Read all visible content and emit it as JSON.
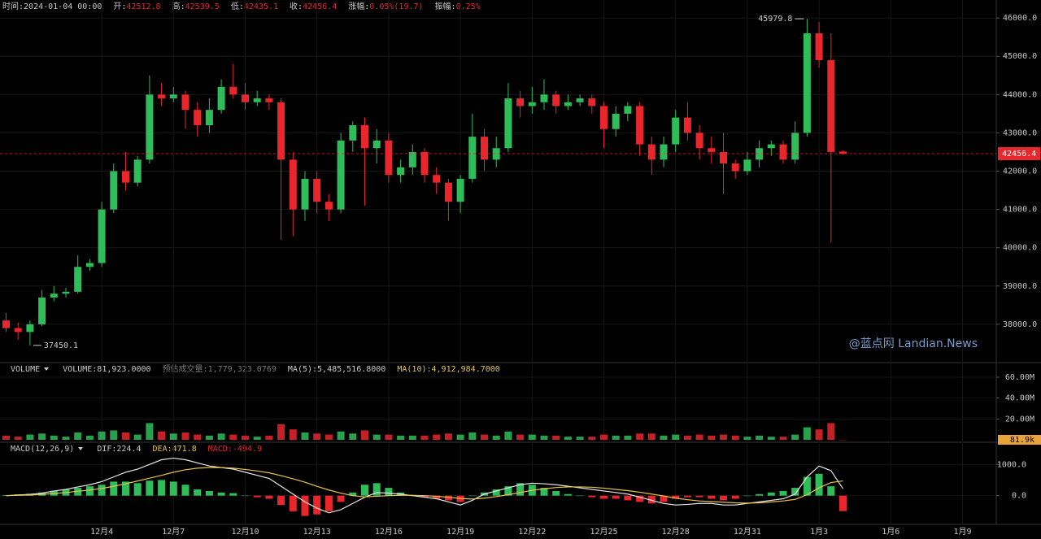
{
  "watermark": "@蓝点网 Landian.News",
  "chart_data": [
    {
      "type": "candlestick",
      "header": {
        "time_label": "时间:",
        "time": "2024-01-04 00:00",
        "open_label": "开:",
        "high_label": "高:",
        "low_label": "低:",
        "close_label": "收:",
        "change_label": "涨幅:",
        "change": "0.05%(19.7)",
        "amplitude_label": "振幅:",
        "amplitude": "0.25%"
      },
      "up_color": "#2ebd59",
      "down_color": "#e8262b",
      "categories": [
        null,
        null,
        null,
        null,
        null,
        null,
        null,
        null,
        "12月4",
        null,
        null,
        null,
        null,
        null,
        "12月7",
        null,
        null,
        null,
        null,
        null,
        "12月10",
        null,
        null,
        null,
        null,
        null,
        "12月13",
        null,
        null,
        null,
        null,
        null,
        "12月16",
        null,
        null,
        null,
        null,
        null,
        "12月19",
        null,
        null,
        null,
        null,
        null,
        "12月22",
        null,
        null,
        null,
        null,
        null,
        "12月25",
        null,
        null,
        null,
        null,
        null,
        "12月28",
        null,
        null,
        null,
        null,
        null,
        "12月31",
        null,
        null,
        null,
        null,
        null,
        "1月3",
        null,
        null,
        null,
        null,
        null,
        "1月6",
        null,
        null,
        null,
        null,
        null,
        "1月9"
      ],
      "open": [
        38100,
        37900,
        37800,
        38000,
        38700,
        38800,
        38850,
        39500,
        39600,
        41000,
        42000,
        41700,
        42300,
        44000,
        43900,
        44000,
        43600,
        43200,
        43600,
        44200,
        44000,
        43800,
        43900,
        43800,
        42300,
        41000,
        41800,
        41200,
        41000,
        42800,
        43200,
        42600,
        42800,
        41900,
        42100,
        42500,
        41900,
        41700,
        41200,
        41800,
        42900,
        42300,
        42600,
        43900,
        43700,
        43800,
        44000,
        43700,
        43800,
        43900,
        43700,
        43100,
        43500,
        43700,
        42700,
        42300,
        42700,
        43400,
        43000,
        42600,
        42500,
        42200,
        42000,
        42300,
        42600,
        42700,
        42300,
        43000,
        45600,
        44900,
        42512.8,
        null,
        null,
        null,
        null,
        null,
        null,
        null,
        null,
        null,
        null
      ],
      "high": [
        38300,
        38050,
        38100,
        38900,
        39000,
        38950,
        39800,
        39700,
        41200,
        42200,
        42500,
        42400,
        44500,
        44300,
        44200,
        44100,
        43800,
        43900,
        44400,
        44800,
        44300,
        44100,
        44000,
        43900,
        42500,
        42000,
        42000,
        41400,
        43000,
        43300,
        43400,
        43100,
        43000,
        42300,
        42700,
        42600,
        42100,
        41800,
        41900,
        43500,
        43100,
        42900,
        44300,
        44100,
        44200,
        44400,
        44100,
        44000,
        44000,
        44000,
        43800,
        43700,
        43800,
        43800,
        42900,
        42900,
        43600,
        43800,
        43200,
        42900,
        43000,
        42300,
        42500,
        42800,
        42800,
        42800,
        43300,
        45979.8,
        45900,
        45600,
        42539.5,
        null,
        null,
        null,
        null,
        null,
        null,
        null,
        null,
        null,
        null
      ],
      "low": [
        37800,
        37600,
        37450.1,
        37950,
        38600,
        38700,
        38800,
        39400,
        39500,
        40900,
        41500,
        41600,
        42200,
        43700,
        43800,
        43100,
        42900,
        43000,
        43500,
        43900,
        43600,
        43700,
        43600,
        40200,
        40300,
        40700,
        40900,
        40700,
        40900,
        42500,
        41100,
        42200,
        41700,
        41700,
        41900,
        41700,
        41400,
        40700,
        40900,
        41700,
        42000,
        42100,
        42500,
        43400,
        43500,
        43600,
        43500,
        43600,
        43700,
        43500,
        42600,
        42900,
        43300,
        42400,
        41900,
        42100,
        42500,
        42800,
        42300,
        42200,
        41400,
        41800,
        41900,
        42100,
        42400,
        42200,
        42200,
        42900,
        44700,
        40130,
        42435.1,
        null,
        null,
        null,
        null,
        null,
        null,
        null,
        null,
        null,
        null
      ],
      "close": [
        37900,
        37800,
        38000,
        38700,
        38800,
        38850,
        39500,
        39600,
        41000,
        42000,
        41700,
        42300,
        44000,
        43900,
        44000,
        43600,
        43200,
        43600,
        44200,
        44000,
        43800,
        43900,
        43800,
        42300,
        41000,
        41800,
        41200,
        41000,
        42800,
        43200,
        42600,
        42800,
        41900,
        42100,
        42500,
        41900,
        41700,
        41200,
        41800,
        42900,
        42300,
        42600,
        43900,
        43700,
        43800,
        44000,
        43700,
        43800,
        43900,
        43700,
        43100,
        43500,
        43700,
        42700,
        42300,
        42700,
        43400,
        43000,
        42600,
        42500,
        42200,
        42000,
        42300,
        42600,
        42700,
        42300,
        43000,
        45600,
        44900,
        42500,
        42456.4,
        null,
        null,
        null,
        null,
        null,
        null,
        null,
        null,
        null,
        null
      ],
      "ylim": [
        37000,
        46470
      ],
      "yticks": [
        {
          "value": 38000,
          "label": "38000.0"
        },
        {
          "value": 39000,
          "label": "39000.0"
        },
        {
          "value": 40000,
          "label": "40000.0"
        },
        {
          "value": 41000,
          "label": "41000.0"
        },
        {
          "value": 42000,
          "label": "42000.0"
        },
        {
          "value": 43000,
          "label": "43000.0"
        },
        {
          "value": 44000,
          "label": "44000.0"
        },
        {
          "value": 45000,
          "label": "45000.0"
        },
        {
          "value": 46000,
          "label": "46000.0"
        }
      ]
    },
    {
      "type": "bar",
      "legend": {
        "title": "VOLUME",
        "volume": "VOLUME:81,923.0000",
        "estimate": "预估成交量:1,779,323.0769",
        "ma5": "MA(5):5,485,516.8000",
        "ma10": "MA(10):4,912,984.7000"
      },
      "values": [
        4000000,
        3000000,
        5000000,
        6000000,
        4000000,
        3000000,
        7000000,
        4000000,
        8000000,
        9000000,
        7000000,
        5000000,
        16000000,
        8000000,
        6000000,
        7000000,
        5000000,
        4000000,
        6000000,
        5000000,
        4000000,
        3000000,
        4000000,
        15000000,
        10000000,
        7000000,
        6000000,
        5000000,
        8000000,
        6000000,
        9000000,
        5000000,
        5000000,
        4000000,
        4000000,
        4000000,
        5000000,
        6000000,
        5000000,
        7000000,
        5000000,
        4000000,
        8000000,
        5000000,
        5000000,
        4000000,
        4000000,
        3000000,
        3000000,
        3000000,
        5000000,
        4000000,
        4000000,
        6000000,
        6000000,
        4000000,
        5000000,
        4000000,
        5000000,
        4000000,
        5000000,
        4000000,
        3000000,
        4000000,
        3000000,
        3000000,
        5000000,
        12000000,
        10000000,
        16000000,
        81923,
        null,
        null,
        null,
        null,
        null,
        null,
        null,
        null,
        null,
        null
      ],
      "last_label": "81.9k",
      "ylim": [
        0,
        74000000
      ],
      "yticks": [
        {
          "value": 20000000,
          "label": "20.00M"
        },
        {
          "value": 40000000,
          "label": "40.00M"
        },
        {
          "value": 60000000,
          "label": "60.00M"
        }
      ]
    },
    {
      "type": "macd",
      "legend": {
        "title": "MACD(12,26,9)",
        "dif": "DIF:224.4",
        "dea": "DEA:471.8",
        "macd": "MACD:-494.9"
      },
      "series": [
        {
          "name": "MACD",
          "values": [
            20,
            40,
            60,
            100,
            150,
            200,
            250,
            300,
            350,
            450,
            450,
            400,
            480,
            500,
            450,
            350,
            200,
            150,
            100,
            80,
            0,
            -50,
            -100,
            -300,
            -500,
            -650,
            -600,
            -500,
            -200,
            100,
            350,
            400,
            250,
            100,
            0,
            -50,
            -100,
            -150,
            -200,
            0,
            100,
            200,
            300,
            400,
            350,
            250,
            150,
            50,
            0,
            -50,
            -100,
            -100,
            -150,
            -200,
            -250,
            -200,
            -100,
            -50,
            -50,
            -100,
            -150,
            -100,
            0,
            50,
            100,
            150,
            250,
            600,
            700,
            300,
            -494.9,
            null,
            null,
            null,
            null,
            null,
            null,
            null,
            null,
            null,
            null
          ]
        },
        {
          "name": "DIF",
          "color": "#e6e6e6",
          "values": [
            0,
            20,
            40,
            80,
            150,
            200,
            280,
            350,
            450,
            600,
            750,
            850,
            1000,
            1150,
            1200,
            1150,
            1050,
            950,
            900,
            850,
            750,
            650,
            550,
            300,
            50,
            -200,
            -400,
            -550,
            -450,
            -250,
            -50,
            100,
            80,
            50,
            0,
            -50,
            -100,
            -200,
            -300,
            -150,
            50,
            150,
            250,
            350,
            400,
            380,
            350,
            300,
            250,
            200,
            150,
            100,
            50,
            -50,
            -150,
            -250,
            -300,
            -280,
            -250,
            -250,
            -300,
            -300,
            -250,
            -200,
            -150,
            -100,
            50,
            600,
            950,
            800,
            224.4,
            null,
            null,
            null,
            null,
            null,
            null,
            null,
            null,
            null,
            null
          ]
        },
        {
          "name": "DEA",
          "color": "#e8c34a",
          "values": [
            0,
            10,
            20,
            40,
            70,
            100,
            140,
            180,
            230,
            300,
            380,
            470,
            560,
            650,
            750,
            830,
            880,
            900,
            900,
            880,
            840,
            790,
            730,
            640,
            540,
            430,
            300,
            180,
            80,
            0,
            -40,
            -20,
            0,
            10,
            10,
            0,
            -20,
            -50,
            -90,
            -110,
            -80,
            -30,
            30,
            100,
            170,
            220,
            260,
            280,
            280,
            270,
            240,
            200,
            160,
            110,
            50,
            -10,
            -80,
            -130,
            -170,
            -190,
            -210,
            -230,
            -240,
            -230,
            -200,
            -170,
            -120,
            30,
            250,
            420,
            471.8,
            null,
            null,
            null,
            null,
            null,
            null,
            null,
            null,
            null,
            null
          ]
        }
      ],
      "ylim": [
        -920,
        1710
      ],
      "yticks": [
        {
          "value": 0,
          "label": "0.0"
        },
        {
          "value": 1000,
          "label": "1000.0"
        }
      ]
    }
  ]
}
